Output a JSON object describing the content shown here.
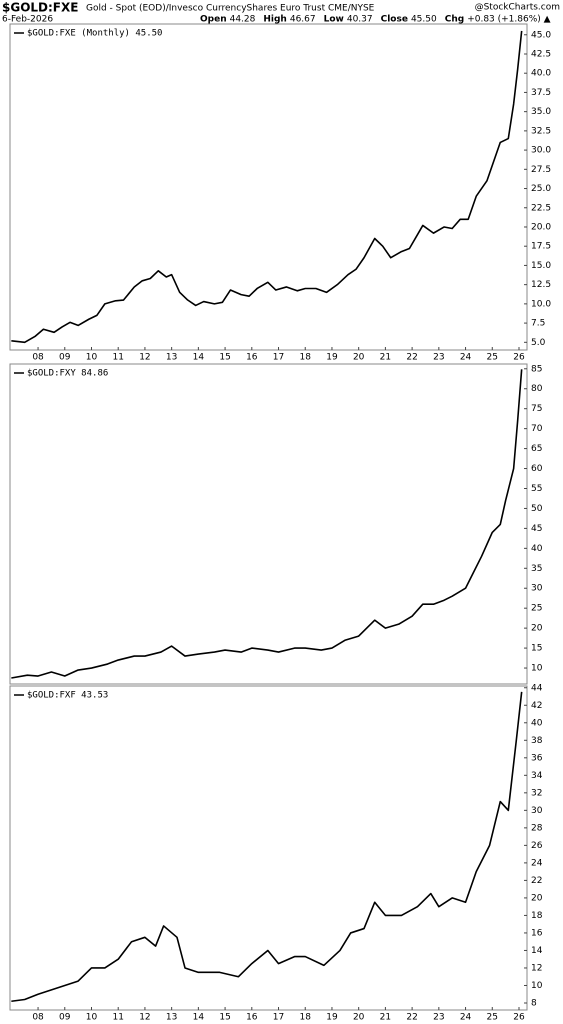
{
  "header": {
    "symbol": "$GOLD:FXE",
    "description": "Gold - Spot (EOD)/Invesco CurrencyShares Euro Trust CME/NYSE",
    "source": "@StockCharts.com",
    "date": "6-Feb-2026",
    "quote": [
      {
        "label": "Open",
        "value": "44.28"
      },
      {
        "label": "High",
        "value": "46.67"
      },
      {
        "label": "Low",
        "value": "40.37"
      },
      {
        "label": "Close",
        "value": "45.50"
      },
      {
        "label": "Chg",
        "value": "+0.83 (+1.86%) ▲"
      }
    ]
  },
  "chart_data": [
    {
      "type": "line",
      "xlim": [
        2006.95,
        2026.3
      ],
      "ylim": [
        4,
        46.4
      ],
      "xticks": [
        {
          "value": 2008,
          "label": "08"
        },
        {
          "value": 2009,
          "label": "09"
        },
        {
          "value": 2010,
          "label": "10"
        },
        {
          "value": 2011,
          "label": "11"
        },
        {
          "value": 2012,
          "label": "12"
        },
        {
          "value": 2013,
          "label": "13"
        },
        {
          "value": 2014,
          "label": "14"
        },
        {
          "value": 2015,
          "label": "15"
        },
        {
          "value": 2016,
          "label": "16"
        },
        {
          "value": 2017,
          "label": "17"
        },
        {
          "value": 2018,
          "label": "18"
        },
        {
          "value": 2019,
          "label": "19"
        },
        {
          "value": 2020,
          "label": "20"
        },
        {
          "value": 2021,
          "label": "21"
        },
        {
          "value": 2022,
          "label": "22"
        },
        {
          "value": 2023,
          "label": "23"
        },
        {
          "value": 2024,
          "label": "24"
        },
        {
          "value": 2025,
          "label": "25"
        },
        {
          "value": 2026,
          "label": "26"
        }
      ],
      "yticks": [
        {
          "value": 5,
          "label": "5.0"
        },
        {
          "value": 7.5,
          "label": "7.5"
        },
        {
          "value": 10,
          "label": "10.0"
        },
        {
          "value": 12.5,
          "label": "12.5"
        },
        {
          "value": 15,
          "label": "15.0"
        },
        {
          "value": 17.5,
          "label": "17.5"
        },
        {
          "value": 20,
          "label": "20.0"
        },
        {
          "value": 22.5,
          "label": "22.5"
        },
        {
          "value": 25,
          "label": "25.0"
        },
        {
          "value": 27.5,
          "label": "27.5"
        },
        {
          "value": 30,
          "label": "30.0"
        },
        {
          "value": 32.5,
          "label": "32.5"
        },
        {
          "value": 35,
          "label": "35.0"
        },
        {
          "value": 37.5,
          "label": "37.5"
        },
        {
          "value": 40,
          "label": "40.0"
        },
        {
          "value": 42.5,
          "label": "42.5"
        },
        {
          "value": 45,
          "label": "45.0"
        }
      ],
      "x": [
        2007.0,
        2007.5,
        2007.9,
        2008.2,
        2008.6,
        2008.9,
        2009.2,
        2009.5,
        2009.9,
        2010.2,
        2010.5,
        2010.9,
        2011.2,
        2011.6,
        2011.9,
        2012.2,
        2012.5,
        2012.8,
        2013.0,
        2013.3,
        2013.6,
        2013.9,
        2014.2,
        2014.6,
        2014.9,
        2015.2,
        2015.6,
        2015.9,
        2016.2,
        2016.6,
        2016.9,
        2017.3,
        2017.7,
        2018.0,
        2018.4,
        2018.8,
        2019.2,
        2019.6,
        2019.9,
        2020.2,
        2020.6,
        2020.9,
        2021.2,
        2021.6,
        2021.9,
        2022.2,
        2022.4,
        2022.8,
        2023.2,
        2023.5,
        2023.8,
        2024.1,
        2024.4,
        2024.8,
        2025.1,
        2025.3,
        2025.6,
        2025.8,
        2025.95,
        2026.1
      ],
      "series": [
        {
          "name": "$GOLD:FXE (Monthly) 45.50",
          "color": "#000000",
          "values": [
            5.2,
            5.0,
            5.8,
            6.7,
            6.3,
            7.0,
            7.6,
            7.2,
            8.0,
            8.5,
            10.0,
            10.4,
            10.5,
            12.2,
            13.0,
            13.3,
            14.3,
            13.5,
            13.8,
            11.5,
            10.5,
            9.8,
            10.3,
            10.0,
            10.2,
            11.8,
            11.2,
            11.0,
            12.0,
            12.8,
            11.8,
            12.2,
            11.7,
            12.0,
            12.0,
            11.5,
            12.5,
            13.8,
            14.5,
            16.0,
            18.5,
            17.5,
            16.0,
            16.8,
            17.2,
            19.0,
            20.2,
            19.2,
            20.0,
            19.8,
            21.0,
            21.0,
            24.0,
            26.0,
            29.0,
            31.0,
            31.5,
            36.0,
            40.5,
            45.5
          ]
        }
      ]
    },
    {
      "type": "line",
      "xlim": [
        2006.95,
        2026.3
      ],
      "ylim": [
        6,
        86.2
      ],
      "yticks": [
        10,
        15,
        20,
        25,
        30,
        35,
        40,
        45,
        50,
        55,
        60,
        65,
        70,
        75,
        80,
        85
      ],
      "x": [
        2007.0,
        2007.6,
        2008.0,
        2008.5,
        2009.0,
        2009.5,
        2010.0,
        2010.6,
        2011.0,
        2011.6,
        2012.0,
        2012.6,
        2013.0,
        2013.5,
        2014.0,
        2014.6,
        2015.0,
        2015.6,
        2016.0,
        2016.6,
        2017.0,
        2017.6,
        2018.0,
        2018.6,
        2019.0,
        2019.5,
        2020.0,
        2020.6,
        2021.0,
        2021.5,
        2022.0,
        2022.4,
        2022.8,
        2023.2,
        2023.5,
        2024.0,
        2024.3,
        2024.6,
        2025.0,
        2025.3,
        2025.5,
        2025.8,
        2025.95,
        2026.1
      ],
      "series": [
        {
          "name": "$GOLD:FXY 84.86",
          "color": "#000000",
          "values": [
            7.5,
            8.2,
            8.0,
            9.0,
            8.0,
            9.5,
            10.0,
            11.0,
            12.0,
            13.0,
            13.0,
            14.0,
            15.5,
            13.0,
            13.5,
            14.0,
            14.5,
            14.0,
            15.0,
            14.5,
            14.0,
            15.0,
            15.0,
            14.5,
            15.0,
            17.0,
            18.0,
            22.0,
            20.0,
            21.0,
            23.0,
            26.0,
            26.0,
            27.0,
            28.0,
            30.0,
            34.0,
            38.0,
            44.0,
            46.0,
            52.0,
            60.0,
            72.0,
            84.86
          ]
        }
      ]
    },
    {
      "type": "line",
      "xlim": [
        2006.95,
        2026.3
      ],
      "ylim": [
        7.2,
        44.2
      ],
      "xticks": [
        {
          "value": 2008,
          "label": "08"
        },
        {
          "value": 2009,
          "label": "09"
        },
        {
          "value": 2010,
          "label": "10"
        },
        {
          "value": 2011,
          "label": "11"
        },
        {
          "value": 2012,
          "label": "12"
        },
        {
          "value": 2013,
          "label": "13"
        },
        {
          "value": 2014,
          "label": "14"
        },
        {
          "value": 2015,
          "label": "15"
        },
        {
          "value": 2016,
          "label": "16"
        },
        {
          "value": 2017,
          "label": "17"
        },
        {
          "value": 2018,
          "label": "18"
        },
        {
          "value": 2019,
          "label": "19"
        },
        {
          "value": 2020,
          "label": "20"
        },
        {
          "value": 2021,
          "label": "21"
        },
        {
          "value": 2022,
          "label": "22"
        },
        {
          "value": 2023,
          "label": "23"
        },
        {
          "value": 2024,
          "label": "24"
        },
        {
          "value": 2025,
          "label": "25"
        },
        {
          "value": 2026,
          "label": "26"
        }
      ],
      "yticks": [
        8,
        10,
        12,
        14,
        16,
        18,
        20,
        22,
        24,
        26,
        28,
        30,
        32,
        34,
        36,
        38,
        40,
        42,
        44
      ],
      "x": [
        2007.0,
        2007.5,
        2008.0,
        2008.5,
        2009.0,
        2009.5,
        2010.0,
        2010.5,
        2011.0,
        2011.5,
        2012.0,
        2012.4,
        2012.7,
        2013.2,
        2013.5,
        2014.0,
        2014.8,
        2015.5,
        2016.0,
        2016.6,
        2017.0,
        2017.6,
        2018.0,
        2018.7,
        2019.3,
        2019.7,
        2020.2,
        2020.6,
        2021.0,
        2021.6,
        2022.2,
        2022.7,
        2023.0,
        2023.5,
        2024.0,
        2024.4,
        2024.9,
        2025.3,
        2025.6,
        2025.9,
        2026.1
      ],
      "series": [
        {
          "name": "$GOLD:FXF 43.53",
          "color": "#000000",
          "values": [
            8.2,
            8.4,
            9.0,
            9.5,
            10.0,
            10.5,
            12.0,
            12.0,
            13.0,
            15.0,
            15.5,
            14.5,
            16.8,
            15.5,
            12.0,
            11.5,
            11.5,
            11.0,
            12.5,
            14.0,
            12.5,
            13.3,
            13.3,
            12.3,
            14.0,
            16.0,
            16.5,
            19.5,
            18.0,
            18.0,
            19.0,
            20.5,
            19.0,
            20.0,
            19.5,
            23.0,
            26.0,
            31.0,
            30.0,
            38.0,
            43.53
          ]
        }
      ]
    }
  ]
}
